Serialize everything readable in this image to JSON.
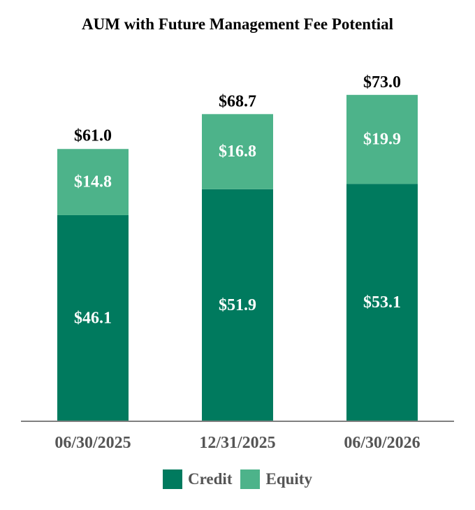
{
  "chart_data": {
    "type": "bar",
    "stacked": true,
    "title": "AUM with Future Management Fee Potential",
    "categories": [
      "06/30/2025",
      "12/31/2025",
      "06/30/2026"
    ],
    "series": [
      {
        "name": "Credit",
        "color": "#007A5E",
        "values": [
          46.1,
          51.9,
          53.1
        ],
        "labels": [
          "$46.1",
          "$51.9",
          "$53.1"
        ]
      },
      {
        "name": "Equity",
        "color": "#4DB38A",
        "values": [
          14.8,
          16.8,
          19.9
        ],
        "labels": [
          "$14.8",
          "$16.8",
          "$19.9"
        ]
      }
    ],
    "totals": [
      61.0,
      68.7,
      73.0
    ],
    "total_labels": [
      "$61.0",
      "$68.7",
      "$73.0"
    ],
    "ylim": [
      0,
      80
    ],
    "grid": false,
    "legend_position": "bottom-center",
    "axis_color": "#7F7F7F"
  }
}
